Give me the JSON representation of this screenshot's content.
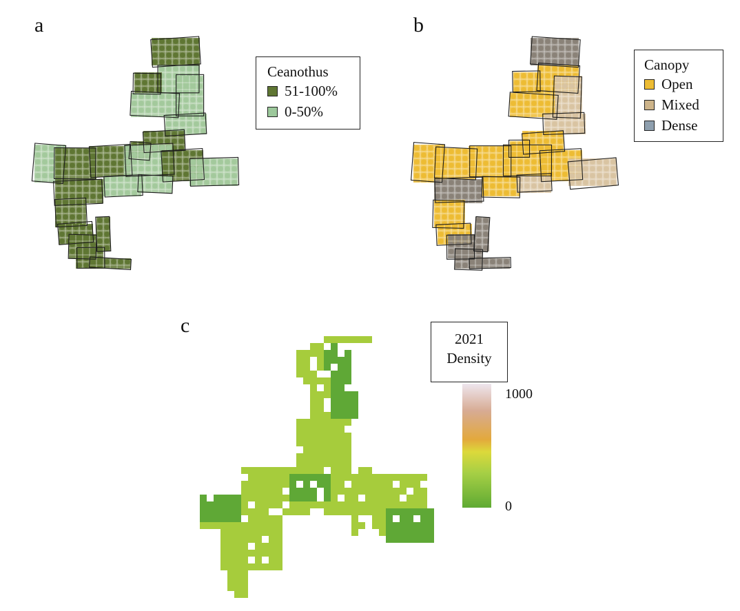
{
  "panels": {
    "a": {
      "label": "a",
      "legend": {
        "title": "Ceanothus",
        "items": [
          {
            "label": "51-100%",
            "color": "#5f7633"
          },
          {
            "label": "0-50%",
            "color": "#9cc89b"
          }
        ]
      }
    },
    "b": {
      "label": "b",
      "legend": {
        "title": "Canopy",
        "items": [
          {
            "label": "Open",
            "color": "#edbc34"
          },
          {
            "label": "Mixed",
            "color": "#cdb48a"
          },
          {
            "label": "Dense",
            "color": "#8e9fae"
          }
        ]
      }
    },
    "c": {
      "label": "c",
      "legend": {
        "title_line1": "2021",
        "title_line2": "Density",
        "max_label": "1000",
        "min_label": "0"
      }
    }
  },
  "colors": {
    "ceanothus_high": "#5f7633",
    "ceanothus_low": "#a3c99c",
    "canopy_open": "#edbc34",
    "canopy_mixed": "#d9c4a2",
    "canopy_dense": "#8a8278",
    "density_high": "#5fa836",
    "density_low": "#a6cc3c",
    "outline": "#1c1c1c"
  }
}
